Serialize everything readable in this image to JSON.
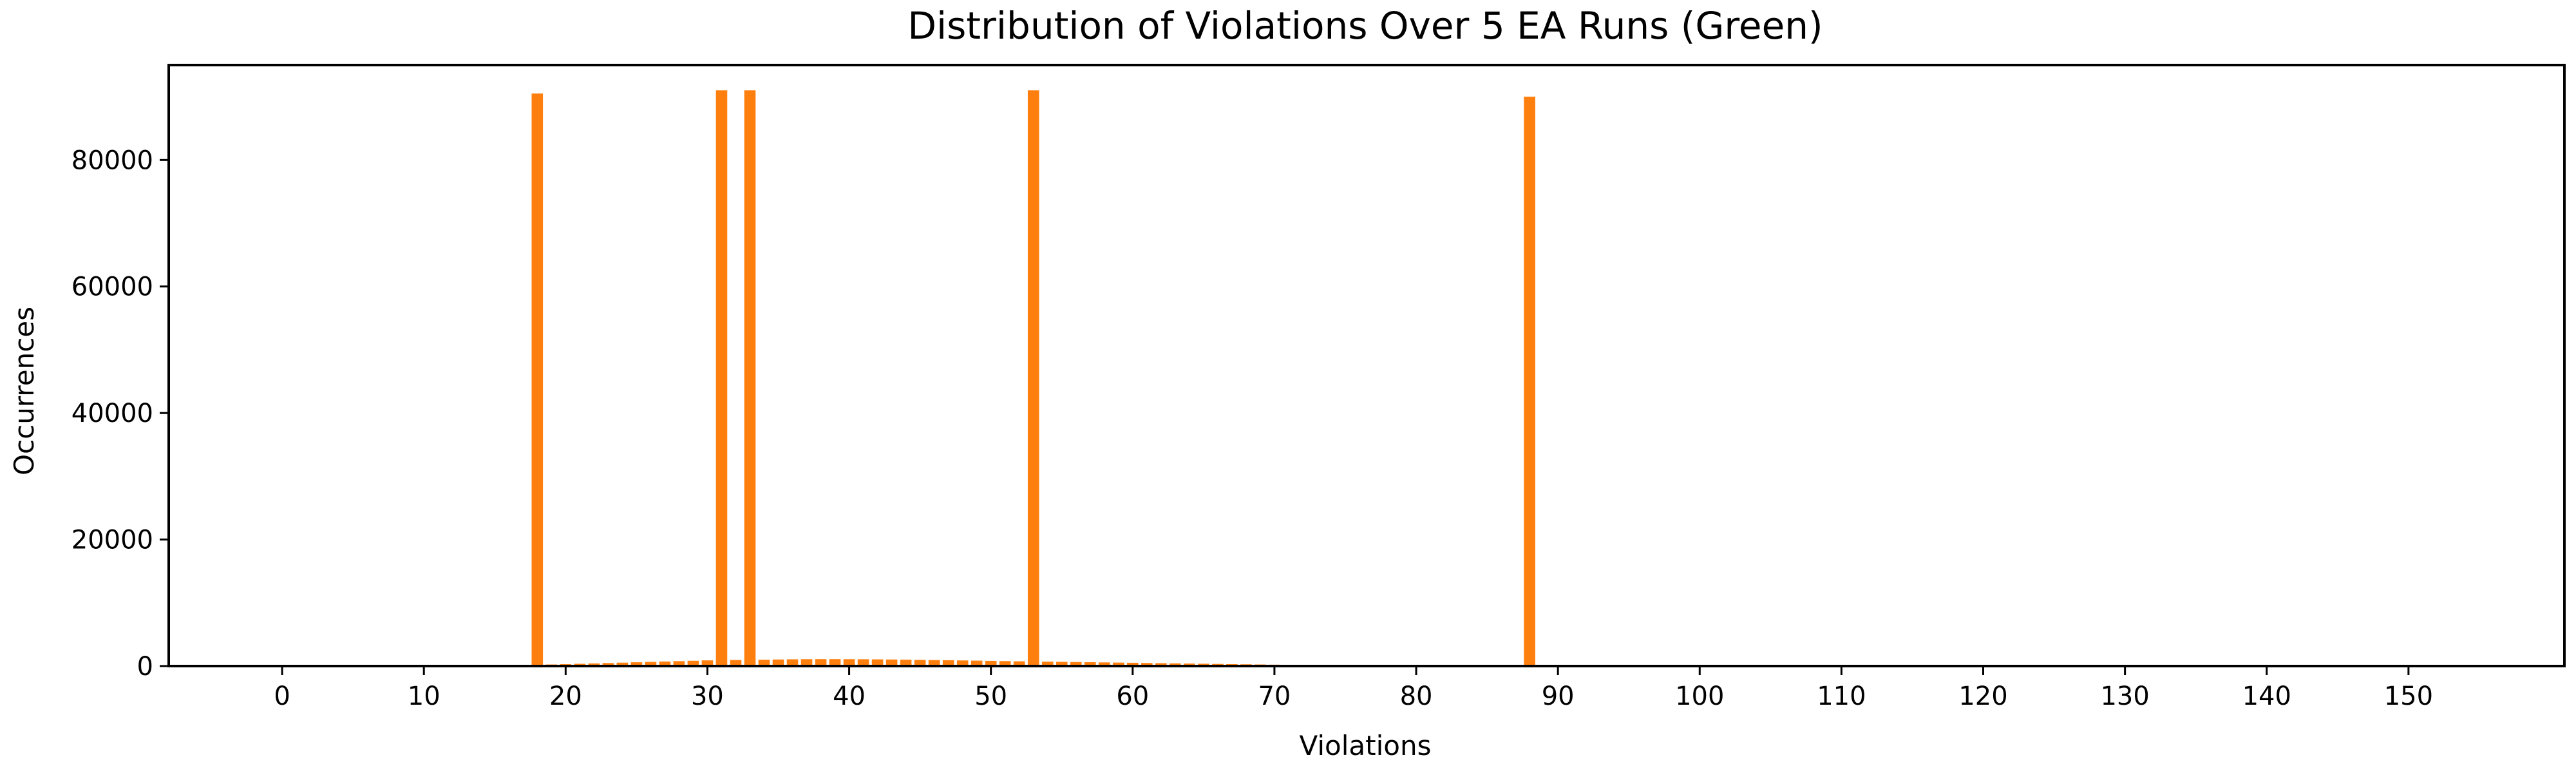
{
  "chart_data": {
    "type": "bar",
    "title": "Distribution of Violations Over 5 EA Runs (Green)",
    "xlabel": "Violations",
    "ylabel": "Occurrences",
    "xlim": [
      -8,
      161
    ],
    "ylim": [
      0,
      95000
    ],
    "x_ticks": [
      0,
      10,
      20,
      30,
      40,
      50,
      60,
      70,
      80,
      90,
      100,
      110,
      120,
      130,
      140,
      150
    ],
    "y_ticks": [
      0,
      20000,
      40000,
      60000,
      80000
    ],
    "grid": false,
    "legend": "none",
    "bar_color": "#ff7f0e",
    "x": [
      16,
      17,
      18,
      19,
      20,
      21,
      22,
      23,
      24,
      25,
      26,
      27,
      28,
      29,
      30,
      31,
      32,
      33,
      34,
      35,
      36,
      37,
      38,
      39,
      40,
      41,
      42,
      43,
      44,
      45,
      46,
      47,
      48,
      49,
      50,
      51,
      52,
      53,
      54,
      55,
      56,
      57,
      58,
      59,
      60,
      61,
      62,
      63,
      64,
      65,
      66,
      67,
      68,
      69,
      70,
      71,
      72,
      73,
      74,
      75,
      76,
      77,
      78,
      79,
      80,
      81,
      82,
      83,
      84,
      85,
      86,
      87,
      88,
      89,
      90
    ],
    "values": [
      60,
      120,
      90500,
      250,
      300,
      360,
      420,
      480,
      540,
      600,
      660,
      720,
      780,
      840,
      900,
      91000,
      960,
      91000,
      1000,
      1040,
      1070,
      1090,
      1100,
      1100,
      1090,
      1080,
      1060,
      1040,
      1010,
      980,
      950,
      920,
      890,
      860,
      820,
      790,
      750,
      91000,
      700,
      670,
      640,
      610,
      580,
      550,
      520,
      490,
      460,
      430,
      400,
      370,
      340,
      310,
      280,
      250,
      220,
      190,
      160,
      130,
      110,
      90,
      70,
      55,
      45,
      35,
      25,
      18,
      12,
      8,
      5,
      3,
      2,
      1,
      90000,
      1,
      0
    ]
  }
}
